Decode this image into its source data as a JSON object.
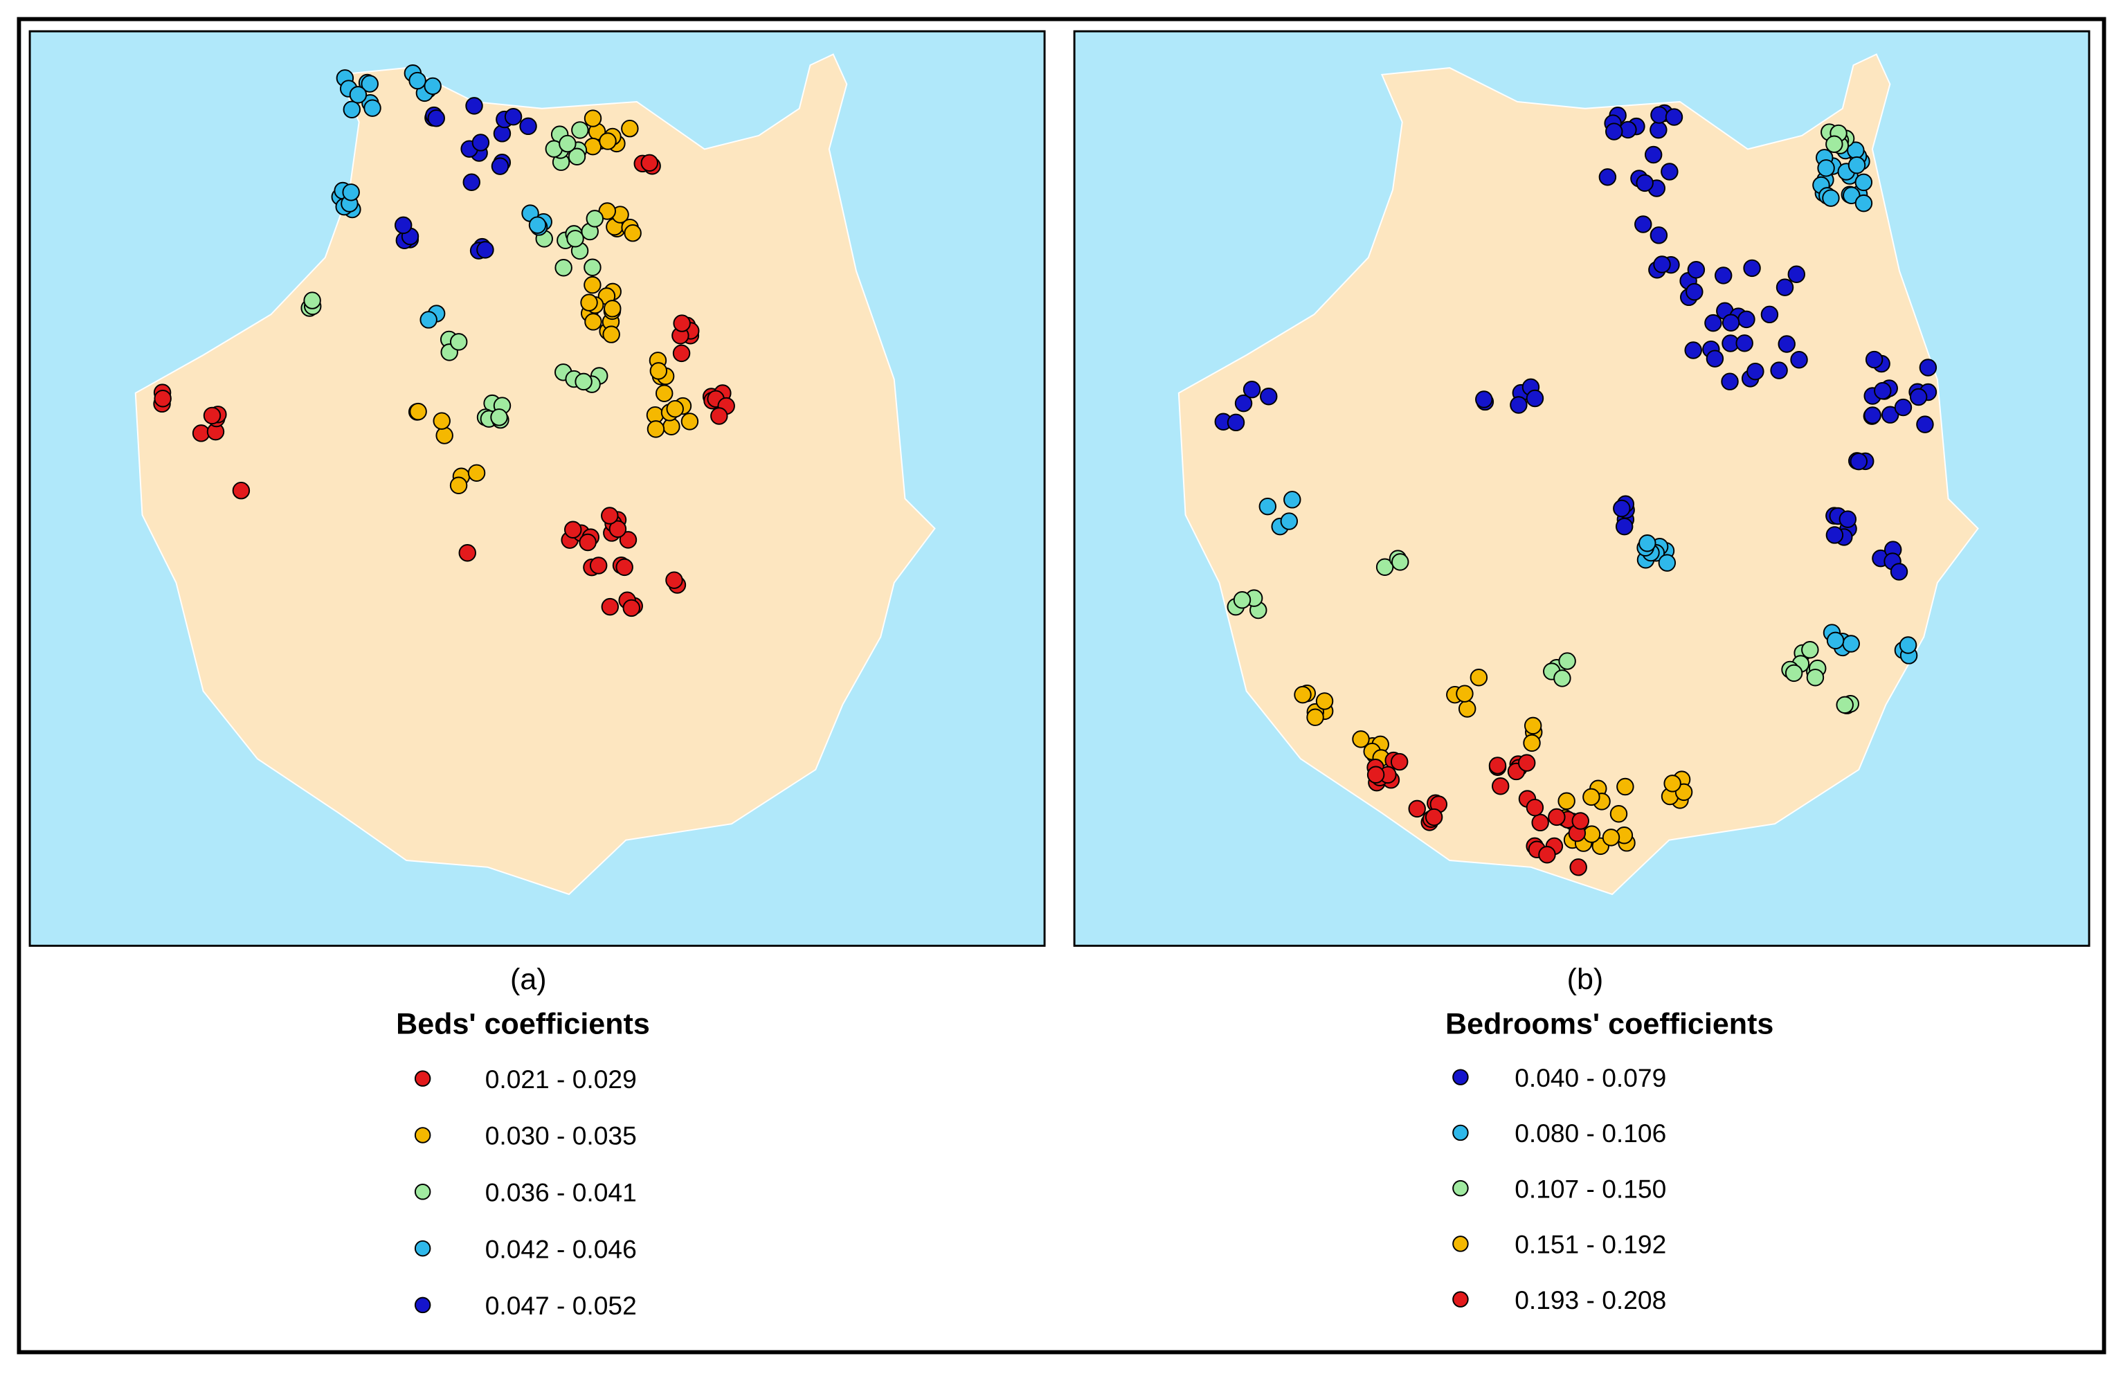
{
  "panels": [
    {
      "label": "(a)",
      "legend_title": "Beds' coefficients",
      "legend": [
        {
          "label": "0.021 - 0.029",
          "color": "#e31a1c"
        },
        {
          "label": "0.030 - 0.035",
          "color": "#f5b800"
        },
        {
          "label": "0.036 - 0.041",
          "color": "#a0eaa0"
        },
        {
          "label": "0.042 - 0.046",
          "color": "#2fb8ea"
        },
        {
          "label": "0.047 - 0.052",
          "color": "#1414cc"
        }
      ]
    },
    {
      "label": "(b)",
      "legend_title": "Bedrooms' coefficients",
      "legend": [
        {
          "label": "0.040 - 0.079",
          "color": "#1414cc"
        },
        {
          "label": "0.080 - 0.106",
          "color": "#2fb8ea"
        },
        {
          "label": "0.107 - 0.150",
          "color": "#a0eaa0"
        },
        {
          "label": "0.151 - 0.192",
          "color": "#f5b800"
        },
        {
          "label": "0.193 - 0.208",
          "color": "#e31a1c"
        }
      ]
    }
  ]
}
